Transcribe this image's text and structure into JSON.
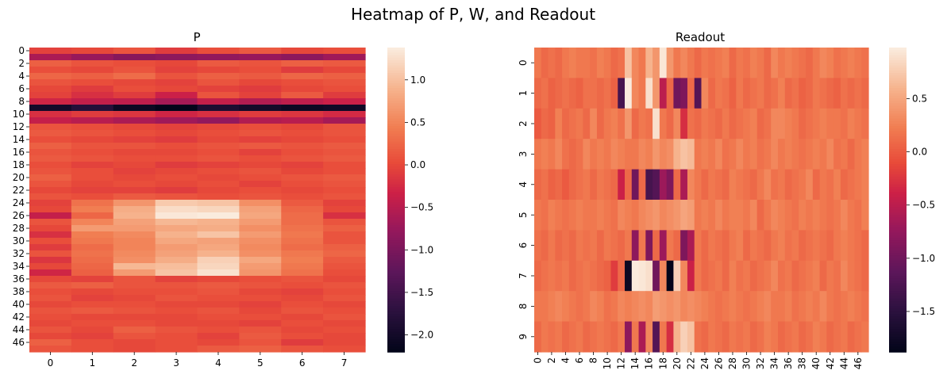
{
  "figure": {
    "suptitle": "Heatmap of P, W, and Readout"
  },
  "chart_data": [
    {
      "type": "heatmap",
      "title": "P",
      "xlabel": "",
      "ylabel": "",
      "n_rows": 48,
      "n_cols": 8,
      "x_tick_labels": [
        "0",
        "1",
        "2",
        "3",
        "4",
        "5",
        "6",
        "7"
      ],
      "y_tick_labels": [
        "0",
        "2",
        "4",
        "6",
        "8",
        "10",
        "12",
        "14",
        "16",
        "18",
        "20",
        "22",
        "24",
        "26",
        "28",
        "30",
        "32",
        "34",
        "36",
        "38",
        "40",
        "42",
        "44",
        "46"
      ],
      "colorbar": {
        "vmin": -2.2,
        "vmax": 1.38,
        "ticks": [
          1.0,
          0.5,
          0.0,
          -0.5,
          -1.0,
          -1.5,
          -2.0
        ],
        "tick_labels": [
          "1.0",
          "0.5",
          "0.0",
          "−0.5",
          "−1.0",
          "−1.5",
          "−2.0"
        ]
      },
      "colormap": "rocket",
      "values": [
        [
          -0.05,
          0.0,
          0.1,
          -0.1,
          0.05,
          0.15,
          0.0,
          0.05
        ],
        [
          -0.6,
          -0.75,
          -0.9,
          -0.85,
          -0.8,
          -0.75,
          -0.85,
          -0.7
        ],
        [
          0.2,
          0.1,
          0.05,
          0.0,
          0.15,
          0.1,
          0.2,
          0.15
        ],
        [
          0.05,
          0.0,
          0.1,
          -0.05,
          0.0,
          0.05,
          -0.1,
          0.0
        ],
        [
          0.25,
          0.2,
          0.3,
          0.1,
          0.2,
          0.15,
          0.25,
          0.2
        ],
        [
          0.1,
          0.05,
          0.0,
          -0.05,
          0.1,
          0.0,
          0.05,
          0.1
        ],
        [
          0.0,
          -0.1,
          0.05,
          0.0,
          -0.05,
          -0.1,
          0.0,
          0.05
        ],
        [
          -0.05,
          -0.2,
          -0.1,
          -0.35,
          0.1,
          -0.05,
          0.15,
          -0.1
        ],
        [
          -0.3,
          -0.4,
          -0.45,
          -0.65,
          -0.4,
          -0.55,
          -0.45,
          -0.35
        ],
        [
          -2.0,
          -1.8,
          -2.1,
          -2.2,
          -1.9,
          -2.0,
          -2.1,
          -2.05
        ],
        [
          -0.2,
          -0.1,
          -0.15,
          -0.3,
          -0.2,
          -0.1,
          -0.15,
          -0.25
        ],
        [
          -0.4,
          -0.5,
          -0.6,
          -0.7,
          -0.8,
          -0.55,
          -0.5,
          -0.65
        ],
        [
          0.1,
          0.05,
          0.0,
          -0.05,
          0.0,
          0.05,
          0.0,
          0.1
        ],
        [
          0.15,
          0.1,
          0.05,
          0.0,
          0.05,
          0.1,
          0.05,
          0.1
        ],
        [
          0.05,
          0.0,
          -0.05,
          -0.1,
          0.0,
          -0.05,
          0.0,
          0.05
        ],
        [
          0.2,
          0.1,
          0.1,
          0.05,
          0.1,
          0.15,
          0.1,
          0.15
        ],
        [
          0.1,
          0.05,
          0.0,
          0.0,
          0.05,
          -0.05,
          0.05,
          0.1
        ],
        [
          0.15,
          0.1,
          0.05,
          0.05,
          0.1,
          0.05,
          0.1,
          0.15
        ],
        [
          0.05,
          -0.05,
          0.0,
          -0.1,
          -0.05,
          0.0,
          -0.05,
          0.05
        ],
        [
          0.1,
          0.05,
          -0.05,
          0.0,
          0.05,
          0.1,
          0.0,
          0.05
        ],
        [
          0.2,
          0.05,
          0.0,
          0.05,
          0.0,
          0.05,
          0.1,
          0.15
        ],
        [
          0.1,
          0.0,
          0.05,
          0.0,
          0.05,
          -0.05,
          0.05,
          0.1
        ],
        [
          0.0,
          -0.05,
          -0.05,
          -0.1,
          0.0,
          0.05,
          0.0,
          0.05
        ],
        [
          0.1,
          0.05,
          0.15,
          0.1,
          0.05,
          0.1,
          0.05,
          0.1
        ],
        [
          -0.05,
          0.35,
          0.65,
          1.1,
          1.05,
          0.6,
          0.15,
          -0.05
        ],
        [
          0.0,
          0.45,
          0.85,
          1.25,
          1.2,
          0.75,
          0.25,
          0.0
        ],
        [
          -0.4,
          0.25,
          0.9,
          1.35,
          1.38,
          0.8,
          0.3,
          -0.2
        ],
        [
          0.1,
          0.5,
          0.75,
          0.95,
          0.9,
          0.7,
          0.3,
          0.1
        ],
        [
          0.0,
          0.7,
          0.7,
          0.8,
          0.85,
          0.6,
          0.35,
          0.2
        ],
        [
          -0.2,
          0.45,
          0.55,
          0.9,
          1.05,
          0.7,
          0.4,
          0.1
        ],
        [
          0.05,
          0.4,
          0.5,
          0.8,
          0.75,
          0.6,
          0.35,
          0.1
        ],
        [
          -0.1,
          0.3,
          0.5,
          0.7,
          0.8,
          0.55,
          0.3,
          0.2
        ],
        [
          0.1,
          0.35,
          0.55,
          0.75,
          0.9,
          0.6,
          0.4,
          0.25
        ],
        [
          -0.15,
          0.3,
          0.6,
          0.85,
          1.15,
          0.8,
          0.45,
          0.15
        ],
        [
          0.0,
          0.25,
          0.95,
          1.0,
          1.2,
          0.7,
          0.4,
          0.1
        ],
        [
          -0.3,
          0.2,
          0.7,
          1.05,
          1.3,
          0.65,
          0.35,
          0.05
        ],
        [
          0.0,
          -0.05,
          0.1,
          -0.05,
          0.0,
          0.05,
          0.1,
          0.0
        ],
        [
          0.15,
          0.2,
          0.1,
          0.1,
          0.15,
          0.1,
          0.05,
          0.1
        ],
        [
          0.05,
          0.0,
          0.05,
          0.05,
          0.1,
          0.0,
          -0.05,
          0.05
        ],
        [
          0.1,
          -0.05,
          0.0,
          0.1,
          0.05,
          0.05,
          0.0,
          0.1
        ],
        [
          0.0,
          0.05,
          0.05,
          0.0,
          0.0,
          -0.05,
          0.05,
          0.0
        ],
        [
          0.1,
          0.15,
          0.1,
          0.05,
          0.1,
          0.0,
          0.1,
          0.05
        ],
        [
          0.05,
          0.0,
          0.0,
          0.0,
          0.05,
          0.05,
          0.0,
          0.1
        ],
        [
          0.0,
          0.05,
          0.05,
          0.0,
          0.0,
          -0.05,
          0.05,
          0.0
        ],
        [
          0.1,
          0.0,
          0.2,
          0.1,
          0.05,
          0.1,
          0.0,
          0.05
        ],
        [
          0.0,
          -0.05,
          0.1,
          0.05,
          -0.05,
          0.15,
          0.05,
          0.0
        ],
        [
          0.2,
          0.05,
          0.0,
          0.05,
          0.0,
          0.1,
          -0.1,
          0.0
        ],
        [
          0.1,
          0.05,
          0.0,
          0.05,
          0.15,
          0.2,
          0.1,
          0.05
        ]
      ]
    },
    {
      "type": "heatmap",
      "title": "Readout",
      "xlabel": "",
      "ylabel": "",
      "n_rows": 10,
      "n_cols": 48,
      "x_tick_labels": [
        "0",
        "2",
        "4",
        "6",
        "8",
        "10",
        "12",
        "14",
        "16",
        "18",
        "20",
        "22",
        "24",
        "26",
        "28",
        "30",
        "32",
        "34",
        "36",
        "38",
        "40",
        "42",
        "44",
        "46"
      ],
      "y_tick_labels": [
        "0",
        "1",
        "2",
        "3",
        "4",
        "5",
        "6",
        "7",
        "8",
        "9"
      ],
      "colorbar": {
        "vmin": -1.88,
        "vmax": 0.98,
        "ticks": [
          0.5,
          0.0,
          -0.5,
          -1.0,
          -1.5
        ],
        "tick_labels": [
          "0.5",
          "0.0",
          "−0.5",
          "−1.0",
          "−1.5"
        ]
      },
      "colormap": "rocket",
      "values": [
        [
          0.2,
          0.1,
          0.15,
          0.1,
          0.2,
          0.25,
          0.2,
          0.2,
          0.15,
          0.25,
          0.2,
          0.1,
          0.15,
          0.7,
          0.3,
          0.2,
          0.6,
          0.4,
          0.95,
          0.4,
          0.2,
          0.3,
          0.2,
          0.1,
          0.2,
          0.15,
          0.2,
          0.25,
          0.1,
          0.2,
          0.15,
          0.25,
          0.2,
          0.1,
          0.3,
          0.2,
          0.25,
          0.2,
          0.15,
          0.1,
          0.2,
          0.3,
          0.25,
          0.15,
          0.2,
          0.25,
          0.2,
          0.15
        ],
        [
          0.1,
          0.15,
          0.05,
          0.1,
          0.15,
          0.1,
          0.05,
          0.15,
          0.15,
          0.1,
          0.15,
          0.05,
          -1.3,
          0.98,
          0.3,
          0.2,
          0.9,
          0.4,
          -0.5,
          0.1,
          -1.0,
          -0.9,
          0.1,
          -1.2,
          0.3,
          0.1,
          0.2,
          0.15,
          0.05,
          0.2,
          0.1,
          0.15,
          0.2,
          0.1,
          0.15,
          0.25,
          0.1,
          0.15,
          0.05,
          0.1,
          0.2,
          0.15,
          0.1,
          0.05,
          0.15,
          0.1,
          0.15,
          0.1
        ],
        [
          0.0,
          0.1,
          0.05,
          0.25,
          0.1,
          0.15,
          0.2,
          0.1,
          0.3,
          0.1,
          0.2,
          0.25,
          0.15,
          0.4,
          0.1,
          0.2,
          0.15,
          0.9,
          0.2,
          0.1,
          0.3,
          -0.3,
          0.15,
          0.1,
          0.2,
          0.15,
          0.1,
          0.2,
          0.1,
          0.15,
          0.2,
          0.25,
          0.1,
          0.15,
          0.3,
          0.3,
          0.25,
          0.2,
          0.1,
          0.15,
          0.2,
          0.25,
          0.2,
          0.2,
          0.15,
          0.25,
          0.2,
          0.15
        ],
        [
          0.2,
          0.25,
          0.2,
          0.3,
          0.15,
          0.1,
          0.15,
          0.3,
          0.2,
          0.25,
          0.2,
          0.3,
          0.25,
          0.2,
          0.2,
          0.3,
          0.25,
          0.4,
          0.3,
          0.35,
          0.6,
          0.7,
          0.65,
          0.2,
          0.25,
          0.2,
          0.3,
          0.15,
          0.2,
          0.3,
          0.2,
          0.25,
          0.15,
          0.2,
          0.3,
          0.2,
          0.25,
          0.2,
          0.15,
          0.2,
          0.25,
          0.2,
          0.3,
          0.15,
          0.2,
          0.1,
          0.2,
          0.25
        ],
        [
          0.1,
          0.15,
          0.05,
          0.1,
          0.0,
          0.1,
          0.15,
          0.2,
          0.1,
          0.2,
          0.15,
          0.1,
          -0.4,
          0.1,
          -1.0,
          0.1,
          -1.3,
          -1.2,
          -0.7,
          -0.9,
          0.1,
          -0.6,
          0.3,
          0.2,
          0.1,
          0.2,
          0.15,
          0.1,
          0.25,
          0.2,
          0.15,
          0.1,
          0.2,
          0.3,
          0.15,
          0.2,
          0.1,
          0.15,
          0.2,
          0.3,
          0.1,
          0.2,
          0.15,
          0.25,
          0.1,
          0.15,
          0.2,
          0.25
        ],
        [
          0.2,
          0.15,
          0.25,
          0.2,
          0.15,
          0.2,
          0.25,
          0.2,
          0.2,
          0.25,
          0.2,
          0.15,
          0.3,
          0.25,
          0.2,
          0.3,
          0.35,
          0.4,
          0.3,
          0.35,
          0.4,
          0.5,
          0.45,
          0.2,
          0.25,
          0.2,
          0.3,
          0.2,
          0.25,
          0.25,
          0.2,
          0.3,
          0.1,
          0.2,
          0.3,
          0.25,
          0.2,
          0.15,
          0.25,
          0.2,
          0.25,
          0.2,
          0.15,
          0.2,
          0.3,
          0.2,
          0.15,
          0.25
        ],
        [
          0.15,
          0.1,
          0.2,
          0.1,
          0.15,
          0.1,
          0.2,
          0.15,
          0.2,
          0.1,
          0.2,
          0.15,
          0.1,
          0.2,
          -0.8,
          0.2,
          -0.9,
          0.1,
          -0.7,
          0.2,
          0.1,
          -0.9,
          -0.6,
          0.2,
          0.1,
          0.2,
          0.15,
          0.1,
          0.2,
          0.25,
          0.1,
          0.2,
          0.15,
          0.1,
          0.2,
          0.25,
          0.15,
          0.2,
          0.1,
          0.15,
          0.2,
          0.15,
          0.1,
          0.2,
          0.25,
          0.2,
          0.15,
          0.1
        ],
        [
          0.1,
          0.15,
          0.2,
          0.15,
          0.2,
          0.1,
          0.15,
          0.2,
          0.15,
          0.1,
          0.05,
          -0.2,
          0.1,
          -1.8,
          0.98,
          0.95,
          0.9,
          -1.0,
          0.3,
          -1.88,
          0.8,
          0.3,
          -0.4,
          0.2,
          0.1,
          0.15,
          0.2,
          0.1,
          0.25,
          0.15,
          0.2,
          0.1,
          0.15,
          0.2,
          0.3,
          0.15,
          0.2,
          0.1,
          0.15,
          0.2,
          0.25,
          0.1,
          0.2,
          0.15,
          0.3,
          0.2,
          0.15,
          0.1
        ],
        [
          0.2,
          0.2,
          0.25,
          0.3,
          0.25,
          0.2,
          0.15,
          0.2,
          0.3,
          0.25,
          0.15,
          0.2,
          0.3,
          0.25,
          0.3,
          0.35,
          0.3,
          0.45,
          0.4,
          0.35,
          0.4,
          0.3,
          0.35,
          0.3,
          0.25,
          0.2,
          0.15,
          0.2,
          0.25,
          0.2,
          0.15,
          0.2,
          0.25,
          0.3,
          0.2,
          0.2,
          0.25,
          0.15,
          0.2,
          0.25,
          0.2,
          0.3,
          0.2,
          0.15,
          0.2,
          0.25,
          0.2,
          0.15
        ],
        [
          0.1,
          0.2,
          0.15,
          0.2,
          0.1,
          0.15,
          0.2,
          0.1,
          0.15,
          0.2,
          0.15,
          0.1,
          0.2,
          -0.8,
          0.2,
          -0.6,
          0.3,
          -1.2,
          0.2,
          -0.3,
          0.6,
          0.8,
          0.7,
          0.15,
          0.1,
          0.2,
          0.15,
          0.1,
          0.2,
          0.15,
          0.2,
          0.1,
          0.15,
          0.25,
          0.2,
          0.1,
          0.15,
          0.2,
          0.1,
          0.15,
          0.25,
          0.2,
          0.1,
          0.15,
          0.2,
          0.1,
          0.15,
          0.2
        ]
      ]
    }
  ]
}
